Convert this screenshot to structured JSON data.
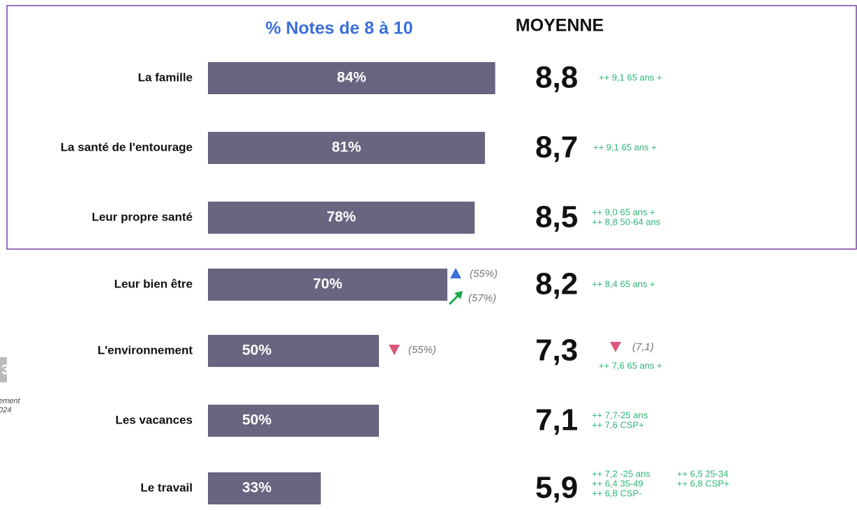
{
  "chart_data": {
    "type": "bar",
    "title": "% Notes de 8 à 10",
    "average_title": "MOYENNE",
    "color": "#67657f",
    "categories": [
      "La famille",
      "La santé de l'entourage",
      "Leur propre santé",
      "Leur bien être",
      "L'environnement",
      "Les vacances",
      "Le travail"
    ],
    "values": [
      84,
      81,
      78,
      70,
      50,
      50,
      33
    ],
    "value_labels": [
      "84%",
      "81%",
      "78%",
      "70%",
      "50%",
      "50%",
      "33%"
    ],
    "averages": [
      8.8,
      8.7,
      8.5,
      8.2,
      7.3,
      7.1,
      5.9
    ],
    "average_labels": [
      "8,8",
      "8,7",
      "8,5",
      "8,2",
      "7,3",
      "7,1",
      "5,9"
    ],
    "notes": [
      [
        "++ 9,1 65 ans +"
      ],
      [
        "++ 9,1  65 ans +"
      ],
      [
        "++ 9,0 65 ans +",
        "++ 8,8 50-64 ans"
      ],
      [
        "++ 8,4  65 ans +"
      ],
      [
        "++ 7,6  65 ans +"
      ],
      [
        "++ 7,7-25 ans",
        "++ 7,6 CSP+"
      ],
      [
        "++ 7,2 -25 ans",
        "++ 6,4 35-49",
        "++ 6,8 CSP-",
        "++ 6,5 25-34",
        "++ 6,8 CSP+"
      ]
    ],
    "comparisons": [
      null,
      null,
      null,
      [
        {
          "marker": "up",
          "color": "#3a6fd8",
          "label": "(55%)"
        },
        {
          "marker": "arrow",
          "color": "#1aa84a",
          "label": "(57%)"
        }
      ],
      [
        {
          "marker": "down",
          "color": "#d9587a",
          "label": "(55%)"
        }
      ],
      null,
      null
    ],
    "average_comparison": {
      "row": 4,
      "marker": "down",
      "color": "#d9587a",
      "label": "(7,1)"
    },
    "side_fragments": [
      "3",
      "ement",
      "024"
    ]
  }
}
